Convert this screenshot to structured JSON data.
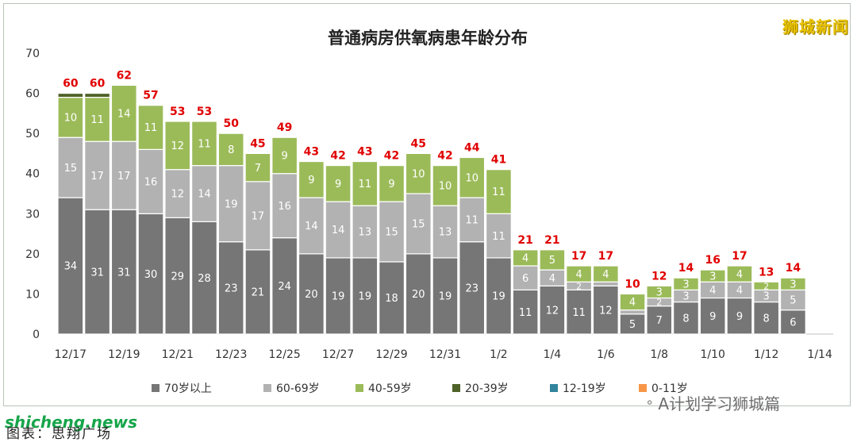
{
  "brand_label": "狮城新闻",
  "watermark_text": "A计划学习狮城篇",
  "site_text": "shicheng.news",
  "caption_text": "图表：思翔广场",
  "colors": {
    "70plus": "#767676",
    "60_69": "#b2b2b2",
    "40_59": "#9bbb59",
    "20_39": "#4f6228",
    "12_19": "#31849b",
    "0_11": "#f79646",
    "total_label": "#e00000"
  },
  "chart_data": {
    "type": "bar",
    "stacked": true,
    "title": "普通病房供氧病患年龄分布",
    "xlabel": "",
    "ylabel": "",
    "ylim": [
      0,
      70
    ],
    "yticks": [
      0,
      10,
      20,
      30,
      40,
      50,
      60,
      70
    ],
    "grid": false,
    "legend_position": "bottom",
    "categories": [
      "12/17",
      "12/18",
      "12/19",
      "12/20",
      "12/21",
      "12/22",
      "12/23",
      "12/24",
      "12/25",
      "12/26",
      "12/27",
      "12/28",
      "12/29",
      "12/30",
      "12/31",
      "1/1",
      "1/2",
      "1/3",
      "1/4",
      "1/5",
      "1/6",
      "1/7",
      "1/8",
      "1/9",
      "1/10",
      "1/11",
      "1/12",
      "1/13",
      "1/14"
    ],
    "tick_labels": [
      "12/17",
      "",
      "12/19",
      "",
      "12/21",
      "",
      "12/23",
      "",
      "12/25",
      "",
      "12/27",
      "",
      "12/29",
      "",
      "12/31",
      "",
      "1/2",
      "",
      "1/4",
      "",
      "1/6",
      "",
      "1/8",
      "",
      "1/10",
      "",
      "1/12",
      "",
      "1/14"
    ],
    "series": [
      {
        "name": "70岁以上",
        "color_key": "70plus",
        "values": [
          34,
          31,
          31,
          30,
          29,
          28,
          23,
          21,
          24,
          20,
          19,
          19,
          18,
          20,
          19,
          23,
          19,
          11,
          12,
          11,
          12,
          5,
          7,
          8,
          9,
          9,
          8,
          6,
          null
        ]
      },
      {
        "name": "60-69岁",
        "color_key": "60_69",
        "values": [
          15,
          17,
          17,
          16,
          12,
          14,
          19,
          17,
          16,
          14,
          14,
          13,
          15,
          15,
          13,
          11,
          11,
          6,
          4,
          2,
          1,
          1,
          2,
          3,
          4,
          4,
          3,
          5,
          null
        ]
      },
      {
        "name": "40-59岁",
        "color_key": "40_59",
        "values": [
          10,
          11,
          14,
          11,
          12,
          11,
          8,
          7,
          9,
          9,
          9,
          11,
          9,
          10,
          10,
          10,
          11,
          4,
          5,
          4,
          4,
          4,
          3,
          3,
          3,
          4,
          2,
          3,
          null
        ]
      },
      {
        "name": "20-39岁",
        "color_key": "20_39",
        "values": [
          1,
          1,
          0,
          0,
          0,
          0,
          0,
          0,
          0,
          0,
          0,
          0,
          0,
          0,
          0,
          0,
          0,
          0,
          0,
          0,
          0,
          0,
          0,
          0,
          0,
          0,
          0,
          0,
          null
        ]
      },
      {
        "name": "12-19岁",
        "color_key": "12_19",
        "values": [
          0,
          0,
          0,
          0,
          0,
          0,
          0,
          0,
          0,
          0,
          0,
          0,
          0,
          0,
          0,
          0,
          0,
          0,
          0,
          0,
          0,
          0,
          0,
          0,
          0,
          0,
          0,
          0,
          null
        ]
      },
      {
        "name": "0-11岁",
        "color_key": "0_11",
        "values": [
          0,
          0,
          0,
          0,
          0,
          0,
          0,
          0,
          0,
          0,
          0,
          0,
          0,
          0,
          0,
          0,
          0,
          0,
          0,
          0,
          0,
          0,
          0,
          0,
          0,
          0,
          0,
          0,
          null
        ]
      }
    ],
    "totals": [
      60,
      60,
      62,
      57,
      53,
      53,
      50,
      45,
      49,
      43,
      42,
      43,
      42,
      45,
      42,
      44,
      41,
      21,
      21,
      17,
      17,
      10,
      12,
      14,
      16,
      17,
      13,
      14,
      null
    ]
  }
}
